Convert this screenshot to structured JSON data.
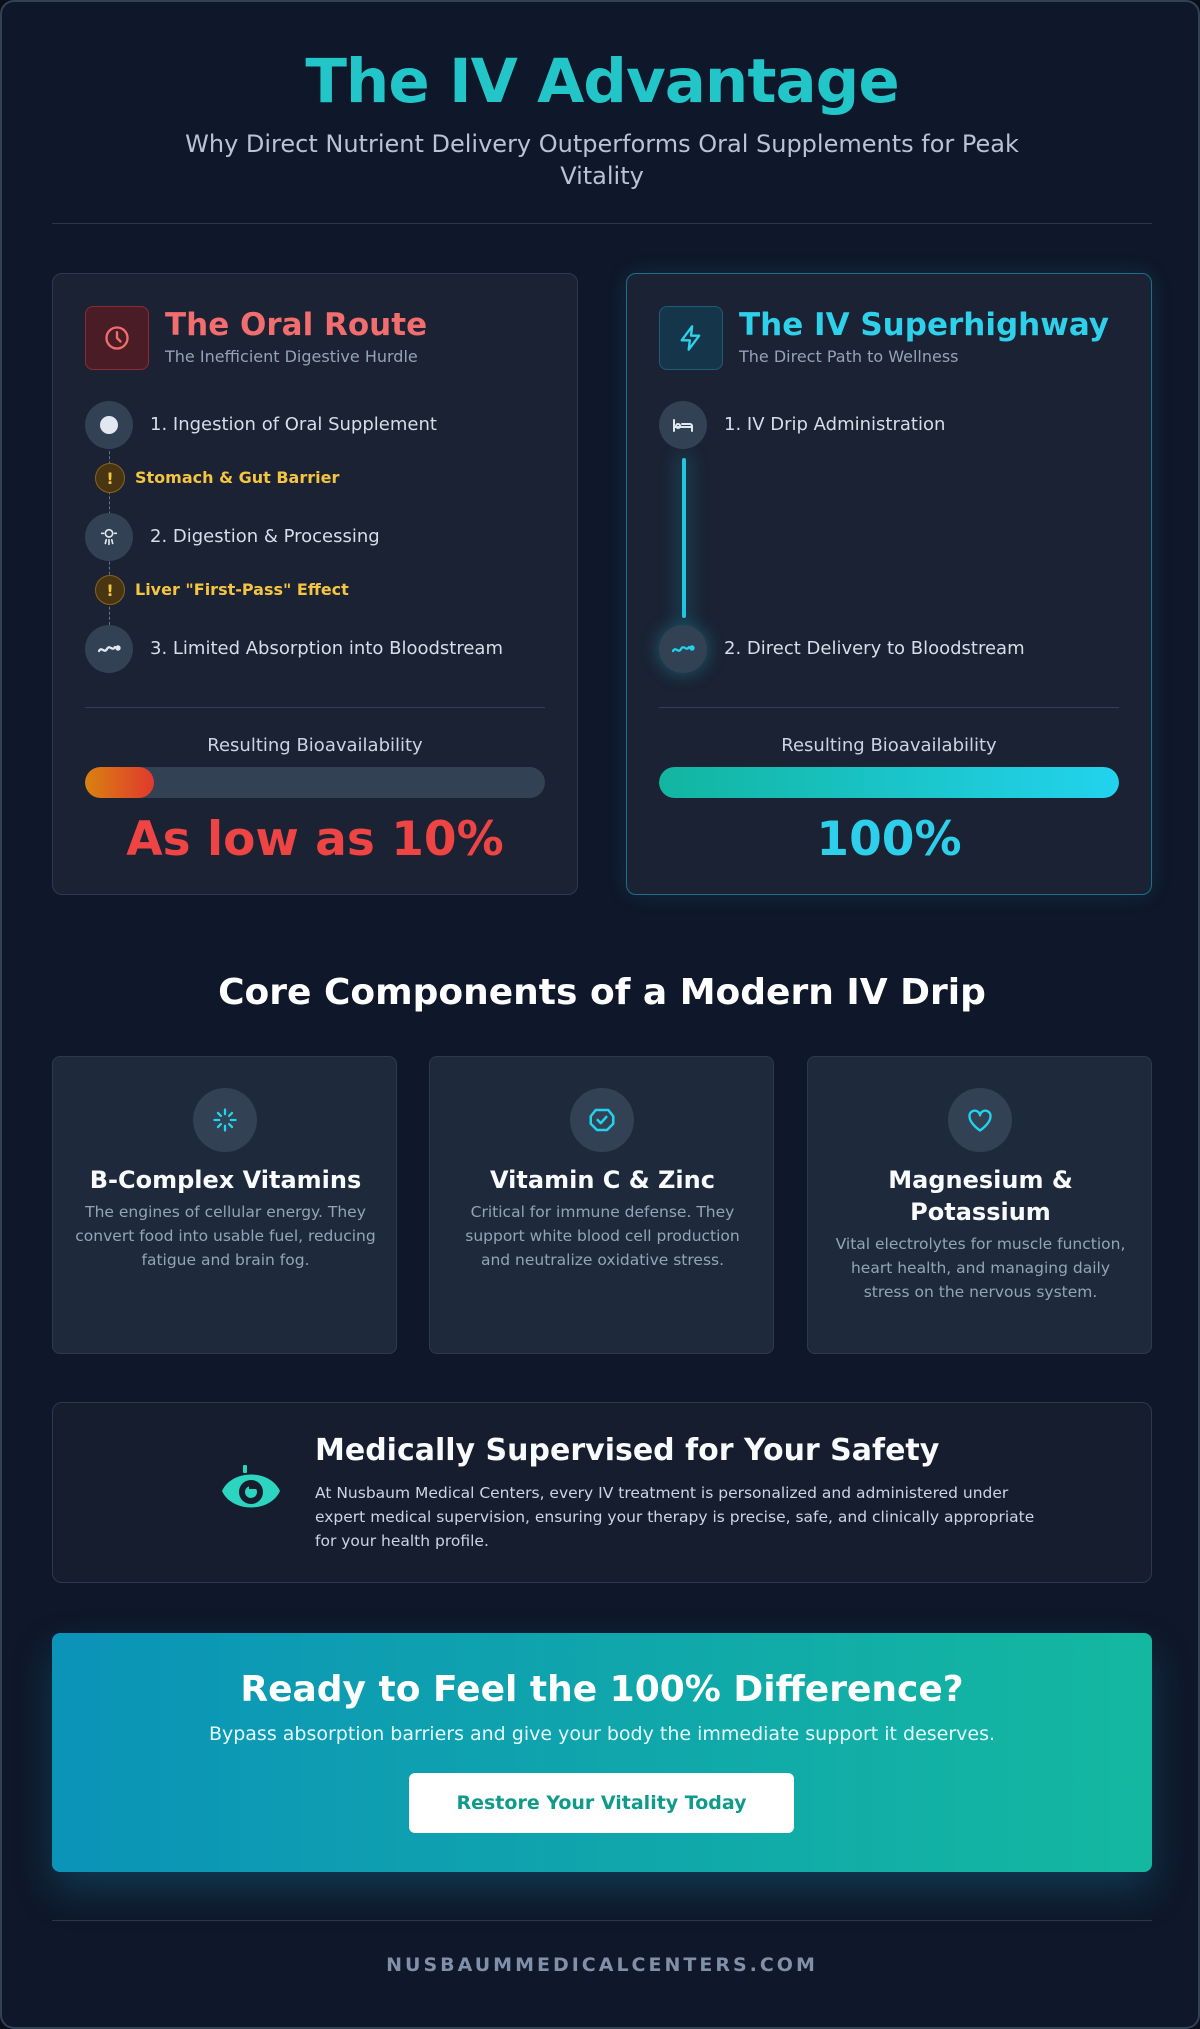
{
  "header": {
    "title": "The IV Advantage",
    "subtitle": "Why Direct Nutrient Delivery Outperforms Oral Supplements for Peak Vitality"
  },
  "oral": {
    "icon": "clock-icon",
    "title": "The Oral Route",
    "subtitle": "The Inefficient Digestive Hurdle",
    "steps": [
      "1. Ingestion of Oral Supplement",
      "2. Digestion & Processing",
      "3. Limited Absorption into Bloodstream"
    ],
    "barriers": [
      "Stomach & Gut Barrier",
      "Liver \"First-Pass\" Effect"
    ],
    "barrier_mark": "!",
    "bio_label": "Resulting Bioavailability",
    "bio_fraction": 0.15,
    "bio_value": "As low as 10%"
  },
  "iv": {
    "icon": "lightning-icon",
    "title": "The IV Superhighway",
    "subtitle": "The Direct Path to Wellness",
    "steps": [
      "1. IV Drip Administration",
      "2. Direct Delivery to Bloodstream"
    ],
    "bio_label": "Resulting Bioavailability",
    "bio_fraction": 1.0,
    "bio_value": "100%"
  },
  "components": {
    "title": "Core Components of a Modern IV Drip",
    "items": [
      {
        "icon": "sparkle-icon",
        "title": "B-Complex Vitamins",
        "desc": "The engines of cellular energy. They convert food into usable fuel, reducing fatigue and brain fog."
      },
      {
        "icon": "shield-check-icon",
        "title": "Vitamin C & Zinc",
        "desc": "Critical for immune defense. They support white blood cell production and neutralize oxidative stress."
      },
      {
        "icon": "heart-icon",
        "title": "Magnesium & Potassium",
        "desc": "Vital electrolytes for muscle function, heart health, and managing daily stress on the nervous system."
      }
    ]
  },
  "safety": {
    "icon": "medical-supervision-icon",
    "title": "Medically Supervised for Your Safety",
    "text": "At Nusbaum Medical Centers, every IV treatment is personalized and administered under expert medical supervision, ensuring your therapy is precise, safe, and clinically appropriate for your health profile."
  },
  "cta": {
    "title": "Ready to Feel the 100% Difference?",
    "subtitle": "Bypass absorption barriers and give your body the immediate support it deserves.",
    "button": "Restore Your Vitality Today"
  },
  "footer": "NUSBAUMMEDICALCENTERS.COM",
  "colors": {
    "accent": "#22c5c8",
    "oral_red": "#ef4444",
    "iv_cyan": "#22d3ee",
    "warning": "#f5c542",
    "background": "#0f172a"
  }
}
